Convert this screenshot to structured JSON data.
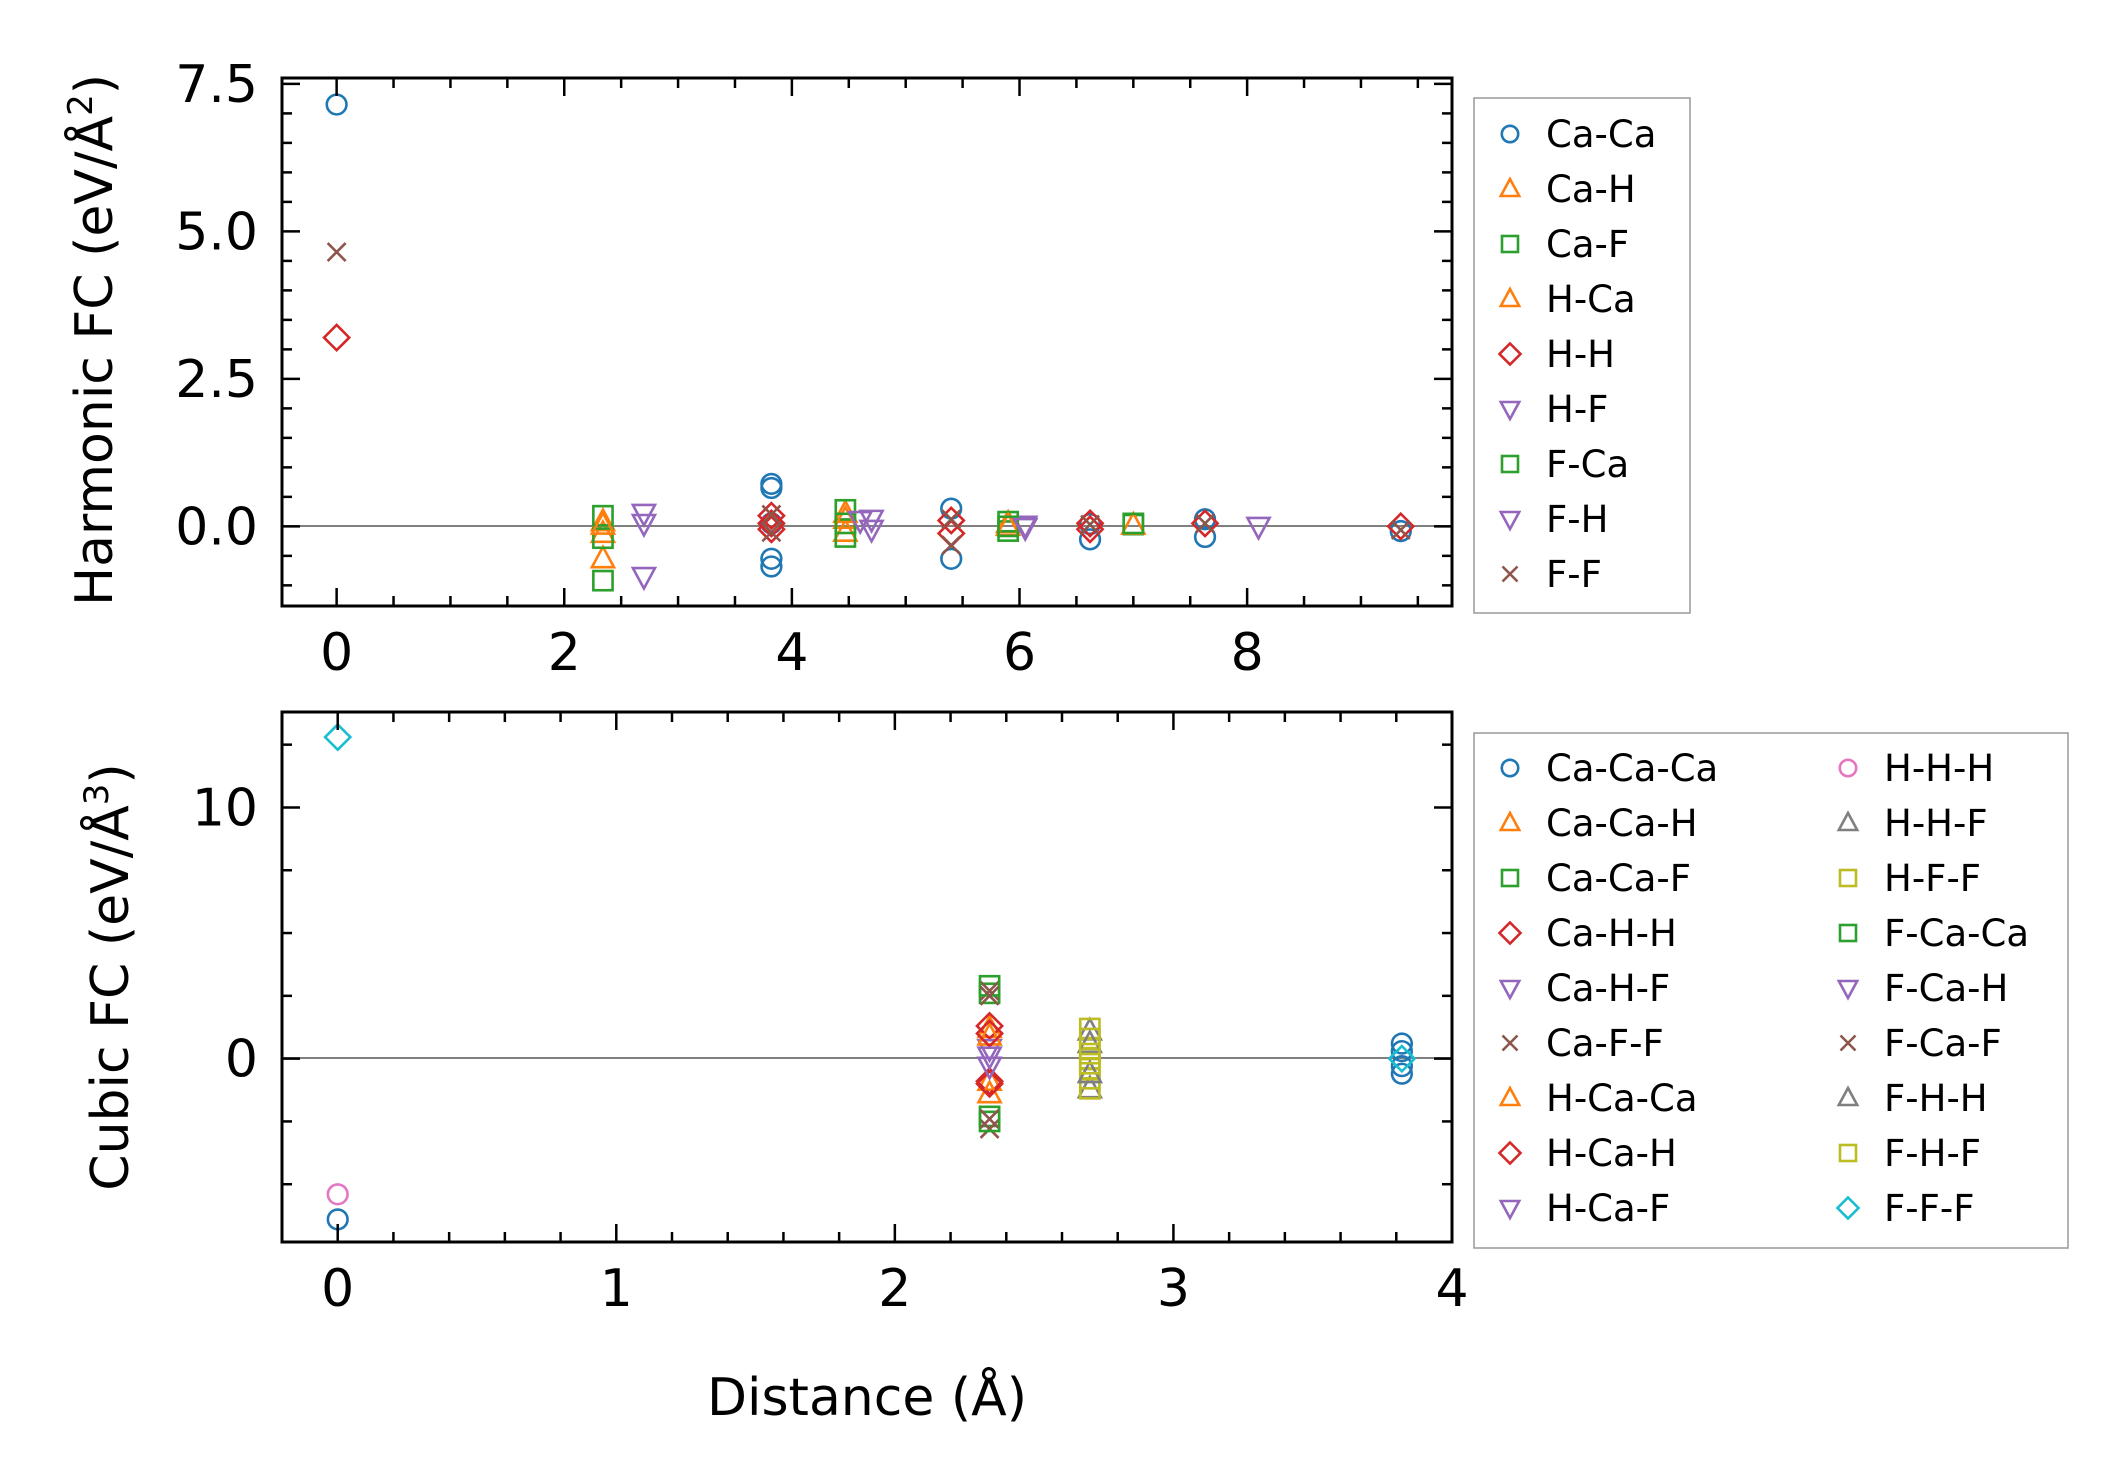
{
  "chart_data": [
    {
      "type": "scatter",
      "panel": "top",
      "ylabel": "Harmonic FC (eV/Å",
      "ylabel_sup": "2",
      "xlim": [
        -0.48,
        9.8
      ],
      "ylim": [
        -1.35,
        7.6
      ],
      "xticks": [
        0,
        2,
        4,
        6,
        8
      ],
      "xtick_labels": [
        "0",
        "2",
        "4",
        "6",
        "8"
      ],
      "yticks": [
        0,
        2.5,
        5,
        7.5
      ],
      "ytick_labels": [
        "0.0",
        "2.5",
        "5.0",
        "7.5"
      ],
      "zero_line": true,
      "legend_position": "right",
      "legend_columns": 1,
      "series": [
        {
          "name": "Ca-Ca",
          "marker": "circle",
          "color": "#1f77b4",
          "points": [
            [
              0,
              7.15
            ],
            [
              3.82,
              0.72
            ],
            [
              3.82,
              0.65
            ],
            [
              3.82,
              -0.55
            ],
            [
              3.82,
              -0.68
            ],
            [
              3.82,
              0.05
            ],
            [
              5.4,
              0.3
            ],
            [
              5.4,
              -0.55
            ],
            [
              6.62,
              -0.22
            ],
            [
              6.62,
              0.04
            ],
            [
              7.63,
              0.12
            ],
            [
              7.63,
              -0.18
            ],
            [
              9.35,
              -0.08
            ]
          ]
        },
        {
          "name": "Ca-H",
          "marker": "triangle-up",
          "color": "#ff7f0e",
          "points": [
            [
              2.34,
              0.08
            ],
            [
              2.34,
              -0.12
            ],
            [
              2.34,
              -0.55
            ],
            [
              4.47,
              0.22
            ],
            [
              4.47,
              -0.1
            ],
            [
              5.9,
              0.05
            ]
          ]
        },
        {
          "name": "Ca-F",
          "marker": "square",
          "color": "#2ca02c",
          "points": [
            [
              2.34,
              0.18
            ],
            [
              2.34,
              -0.2
            ],
            [
              2.34,
              -0.92
            ],
            [
              4.47,
              0.28
            ],
            [
              4.47,
              -0.18
            ],
            [
              5.9,
              0.08
            ],
            [
              5.9,
              -0.08
            ],
            [
              7.0,
              0.03
            ]
          ]
        },
        {
          "name": "H-Ca",
          "marker": "triangle-up",
          "color": "#ff7f0e",
          "points": [
            [
              2.34,
              0.02
            ],
            [
              4.47,
              0.12
            ],
            [
              5.9,
              0.0
            ],
            [
              7.0,
              0.02
            ]
          ]
        },
        {
          "name": "H-H",
          "marker": "diamond",
          "color": "#d62728",
          "points": [
            [
              0,
              3.2
            ],
            [
              3.82,
              0.18
            ],
            [
              3.82,
              0.05
            ],
            [
              3.82,
              -0.05
            ],
            [
              5.4,
              0.1
            ],
            [
              5.4,
              -0.12
            ],
            [
              6.62,
              0.05
            ],
            [
              6.62,
              -0.05
            ],
            [
              7.63,
              0.05
            ],
            [
              9.35,
              0.0
            ]
          ]
        },
        {
          "name": "H-F",
          "marker": "triangle-down",
          "color": "#9467bd",
          "points": [
            [
              2.7,
              0.22
            ],
            [
              2.7,
              0.05
            ],
            [
              2.7,
              -0.85
            ],
            [
              4.7,
              0.12
            ],
            [
              4.7,
              -0.05
            ],
            [
              6.05,
              0.02
            ],
            [
              8.1,
              0.0
            ]
          ]
        },
        {
          "name": "F-Ca",
          "marker": "square",
          "color": "#2ca02c",
          "points": [
            [
              4.47,
              0.05
            ],
            [
              5.9,
              0.0
            ],
            [
              7.0,
              0.05
            ]
          ]
        },
        {
          "name": "F-H",
          "marker": "triangle-down",
          "color": "#9467bd",
          "points": [
            [
              4.6,
              0.1
            ],
            [
              6.05,
              -0.02
            ]
          ]
        },
        {
          "name": "F-F",
          "marker": "x",
          "color": "#8c564b",
          "points": [
            [
              0,
              4.65
            ],
            [
              3.82,
              0.2
            ],
            [
              3.82,
              -0.1
            ],
            [
              5.4,
              0.12
            ],
            [
              5.4,
              -0.32
            ],
            [
              6.62,
              0.03
            ],
            [
              7.63,
              0.05
            ],
            [
              9.35,
              -0.06
            ]
          ]
        }
      ]
    },
    {
      "type": "scatter",
      "panel": "bottom",
      "xlabel": "Distance (Å)",
      "ylabel": "Cubic FC (eV/Å",
      "ylabel_sup": "3",
      "xlim": [
        -0.2,
        4.0
      ],
      "ylim": [
        -7.3,
        13.8
      ],
      "xticks": [
        0,
        1,
        2,
        3,
        4
      ],
      "xtick_labels": [
        "0",
        "1",
        "2",
        "3",
        "4"
      ],
      "yticks": [
        0,
        10
      ],
      "ytick_labels": [
        "0",
        "10"
      ],
      "zero_line": true,
      "legend_position": "right",
      "legend_columns": 2,
      "series": [
        {
          "name": "Ca-Ca-Ca",
          "marker": "circle",
          "color": "#1f77b4",
          "points": [
            [
              0,
              -6.4
            ],
            [
              3.82,
              0.6
            ],
            [
              3.82,
              0.3
            ],
            [
              3.82,
              -0.3
            ],
            [
              3.82,
              -0.6
            ]
          ]
        },
        {
          "name": "Ca-Ca-H",
          "marker": "triangle-up",
          "color": "#ff7f0e",
          "points": [
            [
              2.34,
              -0.9
            ],
            [
              2.34,
              1.2
            ]
          ]
        },
        {
          "name": "Ca-Ca-F",
          "marker": "square",
          "color": "#2ca02c",
          "points": [
            [
              2.34,
              2.6
            ],
            [
              2.34,
              -2.3
            ]
          ]
        },
        {
          "name": "Ca-H-H",
          "marker": "diamond",
          "color": "#d62728",
          "points": [
            [
              2.34,
              1.3
            ],
            [
              2.34,
              -0.9
            ]
          ]
        },
        {
          "name": "Ca-H-F",
          "marker": "triangle-down",
          "color": "#9467bd",
          "points": [
            [
              2.34,
              0.4
            ]
          ]
        },
        {
          "name": "Ca-F-F",
          "marker": "x",
          "color": "#8c564b",
          "points": [
            [
              2.34,
              2.7
            ],
            [
              2.34,
              -2.8
            ]
          ]
        },
        {
          "name": "H-Ca-Ca",
          "marker": "triangle-up",
          "color": "#ff7f0e",
          "points": [
            [
              2.34,
              0.9
            ],
            [
              2.34,
              -1.4
            ]
          ]
        },
        {
          "name": "H-Ca-H",
          "marker": "diamond",
          "color": "#d62728",
          "points": [
            [
              2.34,
              1.0
            ],
            [
              2.34,
              -1.0
            ]
          ]
        },
        {
          "name": "H-Ca-F",
          "marker": "triangle-down",
          "color": "#9467bd",
          "points": [
            [
              2.34,
              -0.3
            ]
          ]
        },
        {
          "name": "H-H-H",
          "marker": "circle",
          "color": "#e377c2",
          "points": [
            [
              0,
              -5.4
            ]
          ]
        },
        {
          "name": "H-H-F",
          "marker": "triangle-up",
          "color": "#7f7f7f",
          "points": [
            [
              2.7,
              1.1
            ],
            [
              2.7,
              -1.2
            ]
          ]
        },
        {
          "name": "H-F-F",
          "marker": "square",
          "color": "#bcbd22",
          "points": [
            [
              2.7,
              1.2
            ],
            [
              2.7,
              0.8
            ],
            [
              2.7,
              0.4
            ],
            [
              2.7,
              0.0
            ],
            [
              2.7,
              -0.4
            ],
            [
              2.7,
              -0.8
            ],
            [
              2.7,
              -1.2
            ]
          ]
        },
        {
          "name": "F-Ca-Ca",
          "marker": "square",
          "color": "#2ca02c",
          "points": [
            [
              2.34,
              2.9
            ],
            [
              2.34,
              -2.5
            ]
          ]
        },
        {
          "name": "F-Ca-H",
          "marker": "triangle-down",
          "color": "#9467bd",
          "points": [
            [
              2.34,
              0.1
            ]
          ]
        },
        {
          "name": "F-Ca-F",
          "marker": "x",
          "color": "#8c564b",
          "points": [
            [
              2.34,
              2.5
            ],
            [
              2.34,
              -2.4
            ]
          ]
        },
        {
          "name": "F-H-H",
          "marker": "triangle-up",
          "color": "#7f7f7f",
          "points": [
            [
              2.7,
              0.6
            ],
            [
              2.7,
              -0.6
            ]
          ]
        },
        {
          "name": "F-H-F",
          "marker": "square",
          "color": "#bcbd22",
          "points": [
            [
              2.7,
              0.2
            ],
            [
              2.7,
              -0.2
            ]
          ]
        },
        {
          "name": "F-F-F",
          "marker": "diamond",
          "color": "#17becf",
          "points": [
            [
              0,
              12.8
            ],
            [
              3.82,
              0.0
            ]
          ]
        }
      ]
    }
  ]
}
